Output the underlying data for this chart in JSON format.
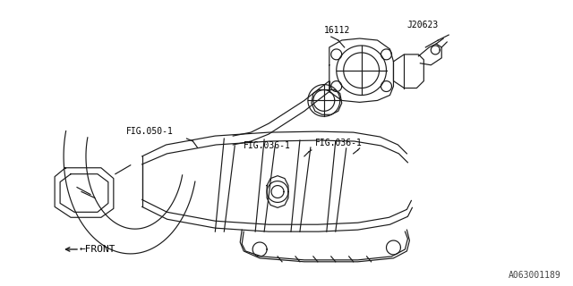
{
  "bg_color": "#ffffff",
  "line_color": "#1a1a1a",
  "text_color": "#000000",
  "fig_width": 6.4,
  "fig_height": 3.2,
  "dpi": 100,
  "watermark": "A063001189",
  "label_16112": "16112",
  "label_J20623": "J20623",
  "label_FIG050": "FIG.050-1",
  "label_FIG036_L": "FIG.036-1",
  "label_FIG036_R": "FIG.036-1",
  "label_FRONT": "←FRONT",
  "font_size": 7.0,
  "wm_font_size": 7.0
}
